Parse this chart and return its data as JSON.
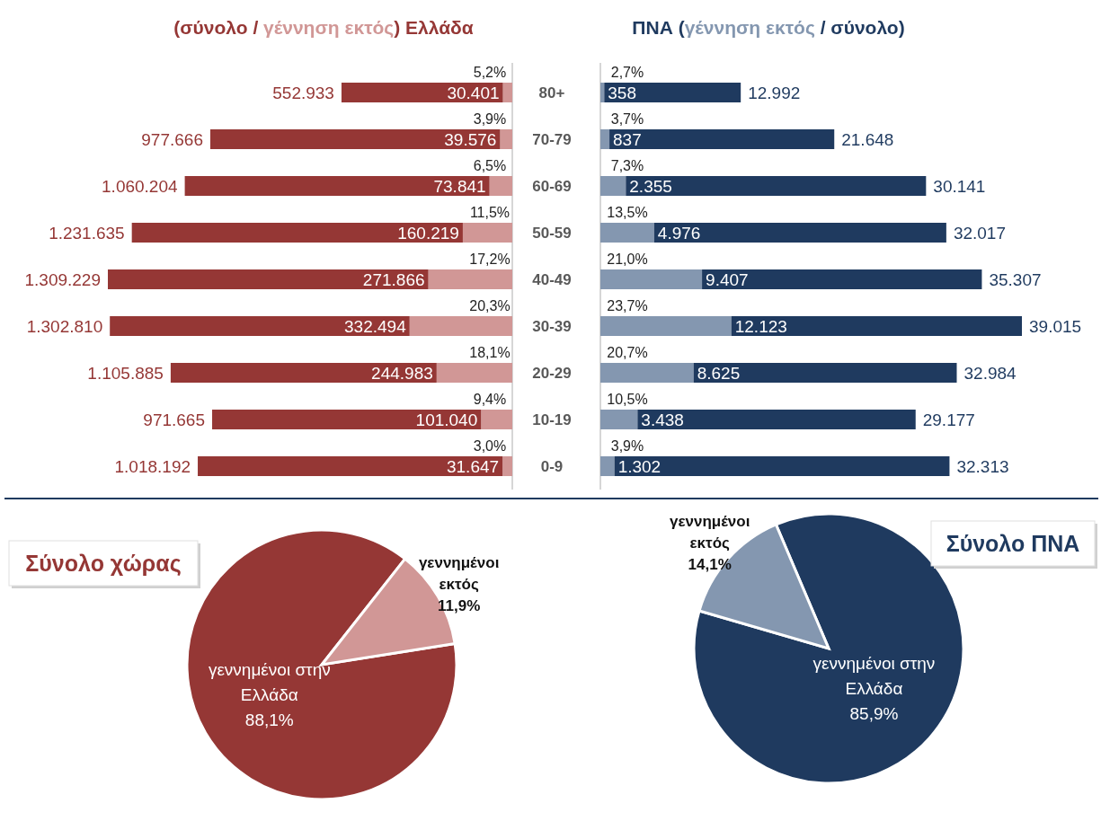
{
  "chart_data": [
    {
      "type": "bar",
      "orientation": "horizontal",
      "stacked": true,
      "title": "(σύνολο / γέννηση εκτός) Ελλάδα",
      "tick_labels": "y",
      "categories": [
        "80+",
        "70-79",
        "60-69",
        "50-59",
        "40-49",
        "30-39",
        "20-29",
        "10-19",
        "0-9"
      ],
      "series": [
        {
          "color": "#d19796",
          "values": [
            30401,
            39576,
            73841,
            160219,
            271866,
            332494,
            244983,
            101040,
            31647
          ],
          "value_labels": [
            "30.401",
            "39.576",
            "73.841",
            "160.219",
            "271.866",
            "332.494",
            "244.983",
            "101.040",
            "31.647"
          ]
        },
        {
          "color": "#953735",
          "values": [
            522532,
            938090,
            986363,
            1071416,
            1037363,
            970316,
            860902,
            870625,
            986545
          ]
        }
      ],
      "totals": [
        "552.933",
        "977.666",
        "1.060.204",
        "1.231.635",
        "1.309.229",
        "1.302.810",
        "1.105.885",
        "971.665",
        "1.018.192"
      ],
      "annotations": [
        "5,2%",
        "3,9%",
        "6,5%",
        "11,5%",
        "17,2%",
        "20,3%",
        "18,1%",
        "9,4%",
        "3,0%"
      ]
    },
    {
      "type": "bar",
      "orientation": "horizontal",
      "stacked": true,
      "title": "ΠΝΑ (γέννηση εκτός / σύνολο)",
      "tick_labels": false,
      "categories": [
        "80+",
        "70-79",
        "60-69",
        "50-59",
        "40-49",
        "30-39",
        "20-29",
        "10-19",
        "0-9"
      ],
      "series": [
        {
          "color": "#8497b0",
          "values": [
            358,
            837,
            2355,
            4976,
            9407,
            12123,
            8625,
            3438,
            1302
          ],
          "value_labels": [
            "358",
            "837",
            "2.355",
            "4.976",
            "9.407",
            "12.123",
            "8.625",
            "3.438",
            "1.302"
          ]
        },
        {
          "color": "#1f3a5f",
          "values": [
            12634,
            20811,
            27786,
            27041,
            25900,
            26892,
            24359,
            25739,
            31011
          ]
        }
      ],
      "totals": [
        "12.992",
        "21.648",
        "30.141",
        "32.017",
        "35.307",
        "39.015",
        "32.984",
        "29.177",
        "32.313"
      ],
      "annotations": [
        "2,7%",
        "3,7%",
        "7,3%",
        "13,5%",
        "21,0%",
        "23,7%",
        "20,7%",
        "10,5%",
        "3,9%"
      ]
    },
    {
      "type": "pie",
      "title": "Σύνολο χώρας",
      "categories": [
        "γεννημένοι στην Ελλάδα",
        "γεννημένοι εκτός"
      ],
      "values": [
        88.1,
        11.9
      ],
      "colors": [
        "#953735",
        "#d19796"
      ],
      "value_labels": [
        "88,1%",
        "11,9%"
      ]
    },
    {
      "type": "pie",
      "title": "Σύνολο ΠΝΑ",
      "categories": [
        "γεννημένοι στην Ελλάδα",
        "γεννημένοι εκτός"
      ],
      "values": [
        85.9,
        14.1
      ],
      "colors": [
        "#1f3a5f",
        "#8497b0"
      ],
      "value_labels": [
        "85,9%",
        "14,1%"
      ]
    }
  ]
}
